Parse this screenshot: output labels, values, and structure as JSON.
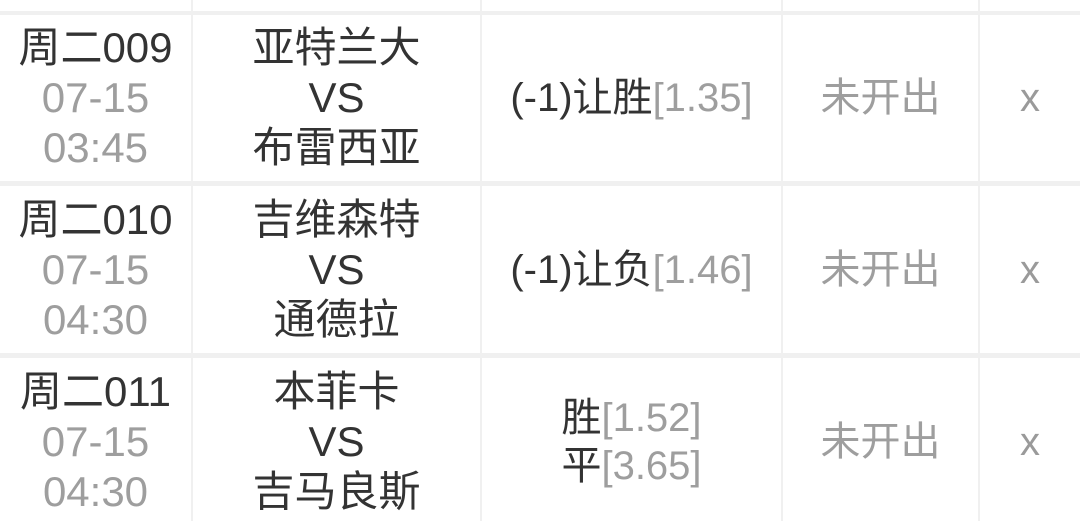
{
  "table": {
    "rows": [
      {
        "match_id": "周二009",
        "date": "07-15",
        "time": "03:45",
        "home_team": "亚特兰大",
        "vs_label": "VS",
        "away_team": "布雷西亚",
        "odds": [
          {
            "label": "(-1)让胜",
            "value": "[1.35]"
          }
        ],
        "result": "未开出",
        "close_label": "x"
      },
      {
        "match_id": "周二010",
        "date": "07-15",
        "time": "04:30",
        "home_team": "吉维森特",
        "vs_label": "VS",
        "away_team": "通德拉",
        "odds": [
          {
            "label": "(-1)让负",
            "value": "[1.46]"
          }
        ],
        "result": "未开出",
        "close_label": "x"
      },
      {
        "match_id": "周二011",
        "date": "07-15",
        "time": "04:30",
        "home_team": "本菲卡",
        "vs_label": "VS",
        "away_team": "吉马良斯",
        "odds": [
          {
            "label": "胜",
            "value": "[1.52]"
          },
          {
            "label": "平",
            "value": "[3.65]"
          }
        ],
        "result": "未开出",
        "close_label": "x"
      }
    ]
  },
  "colors": {
    "text_dark": "#333333",
    "text_gray": "#9e9e9e",
    "divider": "#f0f0f0",
    "background": "#ffffff"
  }
}
